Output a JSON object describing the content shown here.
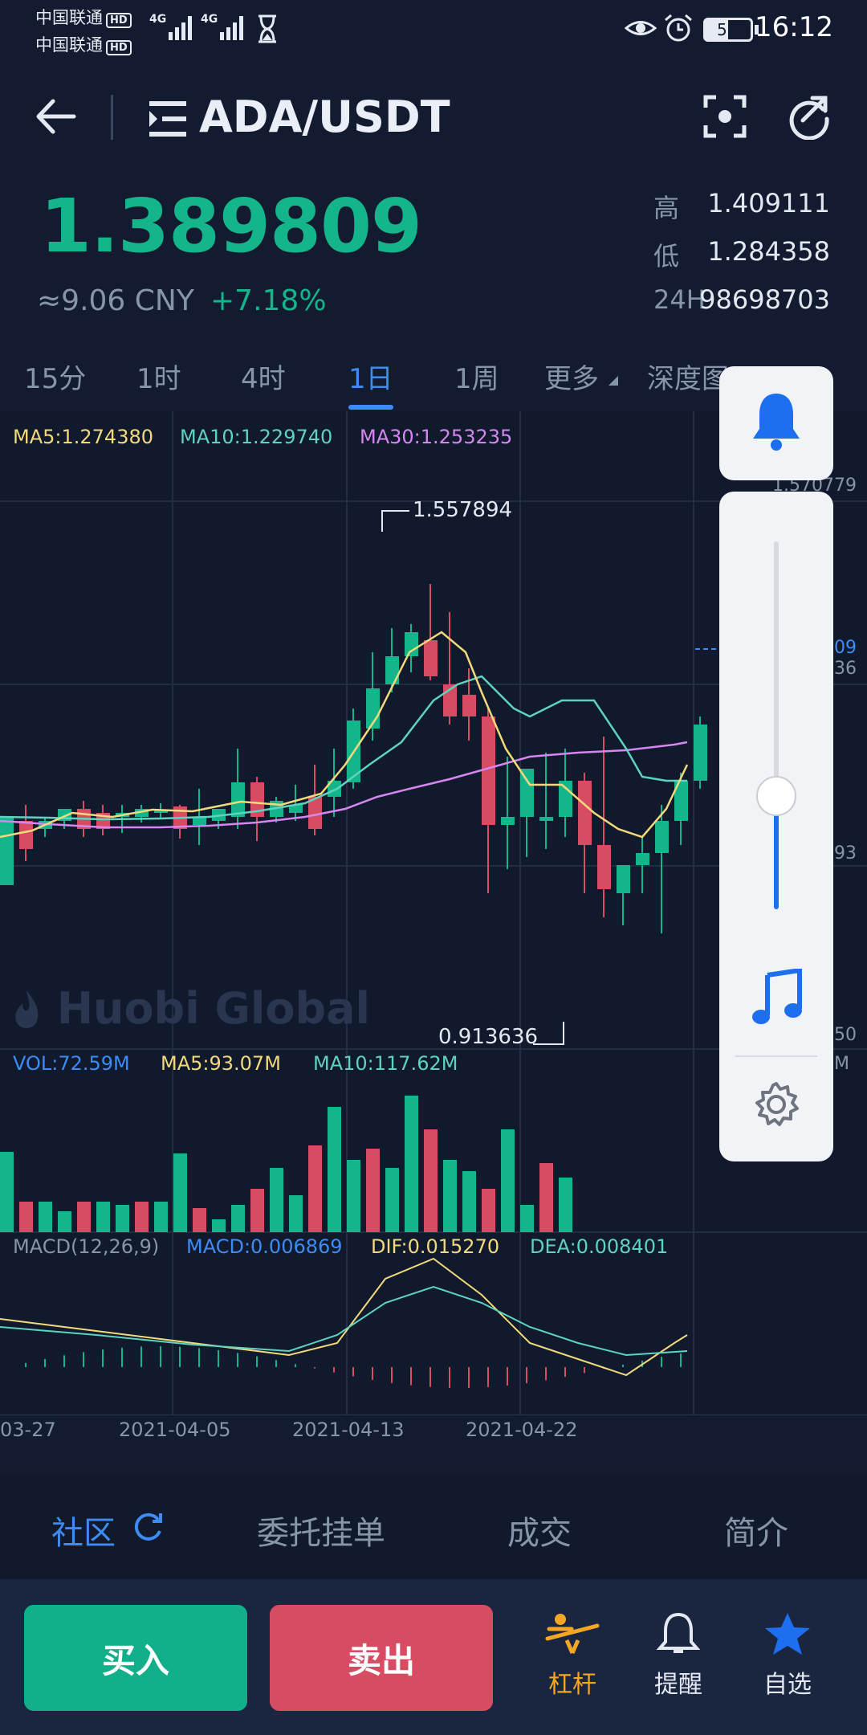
{
  "status": {
    "carrier1": "中国联通",
    "carrier2": "中国联通",
    "hd": "HD",
    "net": "4G",
    "battery": "51",
    "time": "16:12"
  },
  "header": {
    "title": "ADA/USDT"
  },
  "ticker": {
    "last": "1.389809",
    "cny": "≈9.06 CNY",
    "change": "+7.18%",
    "high_label": "高",
    "high": "1.409111",
    "low_label": "低",
    "low": "1.284358",
    "vol_label": "24H",
    "vol": "98698703"
  },
  "tabs": [
    "15分",
    "1时",
    "4时",
    "1日",
    "1周",
    "更多",
    "深度图"
  ],
  "active_tab": "1日",
  "ma": {
    "ma5": "MA5:1.274380",
    "ma10": "MA10:1.229740",
    "ma30": "MA30:1.253235"
  },
  "price_axis": {
    "top": "1.570779",
    "current": "1.389809",
    "mid": "1.347436",
    "low_tick": "1.124093",
    "bottom": "0.900750"
  },
  "extremes": {
    "high": "1.557894",
    "low": "0.913636"
  },
  "watermark": "Huobi Global",
  "vol_legend": {
    "vol": "VOL:72.59M",
    "ma5": "MA5:93.07M",
    "ma10": "MA10:117.62M",
    "axis": "324.24M"
  },
  "macd_legend": {
    "label": "MACD(12,26,9)",
    "macd": "MACD:0.006869",
    "dif": "DIF:0.015270",
    "dea": "DEA:0.008401"
  },
  "dates": [
    "03-27",
    "2021-04-05",
    "2021-04-13",
    "2021-04-22"
  ],
  "bottom_tabs": [
    "社区",
    "委托挂单",
    "成交",
    "简介"
  ],
  "actions": {
    "buy": "买入",
    "sell": "卖出",
    "leverage": "杠杆",
    "alert": "提醒",
    "favorite": "自选"
  },
  "colors": {
    "up": "#14b58a",
    "down": "#d84c63",
    "accent": "#3d8cf5",
    "leverage": "#f5a623"
  }
}
